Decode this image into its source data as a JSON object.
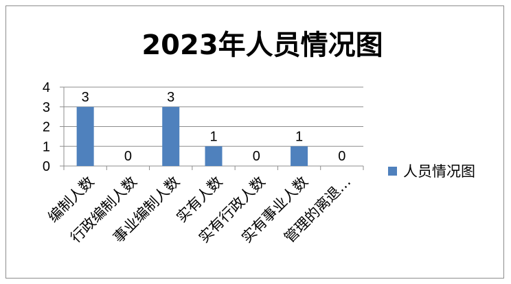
{
  "chart_data": {
    "type": "bar",
    "title": "2023年人员情况图",
    "categories": [
      "编制人数",
      "行政编制人数",
      "事业编制人数",
      "实有人数",
      "实有行政人数",
      "实有事业人数",
      "管理的离退…"
    ],
    "series": [
      {
        "name": "人员情况图",
        "values": [
          3,
          0,
          3,
          1,
          0,
          1,
          0
        ],
        "color": "#4f81bd"
      }
    ],
    "ylim": [
      0,
      4
    ],
    "yticks": [
      "0",
      "1",
      "2",
      "3",
      "4"
    ],
    "grid": true,
    "legend": "right",
    "data_labels": true
  }
}
